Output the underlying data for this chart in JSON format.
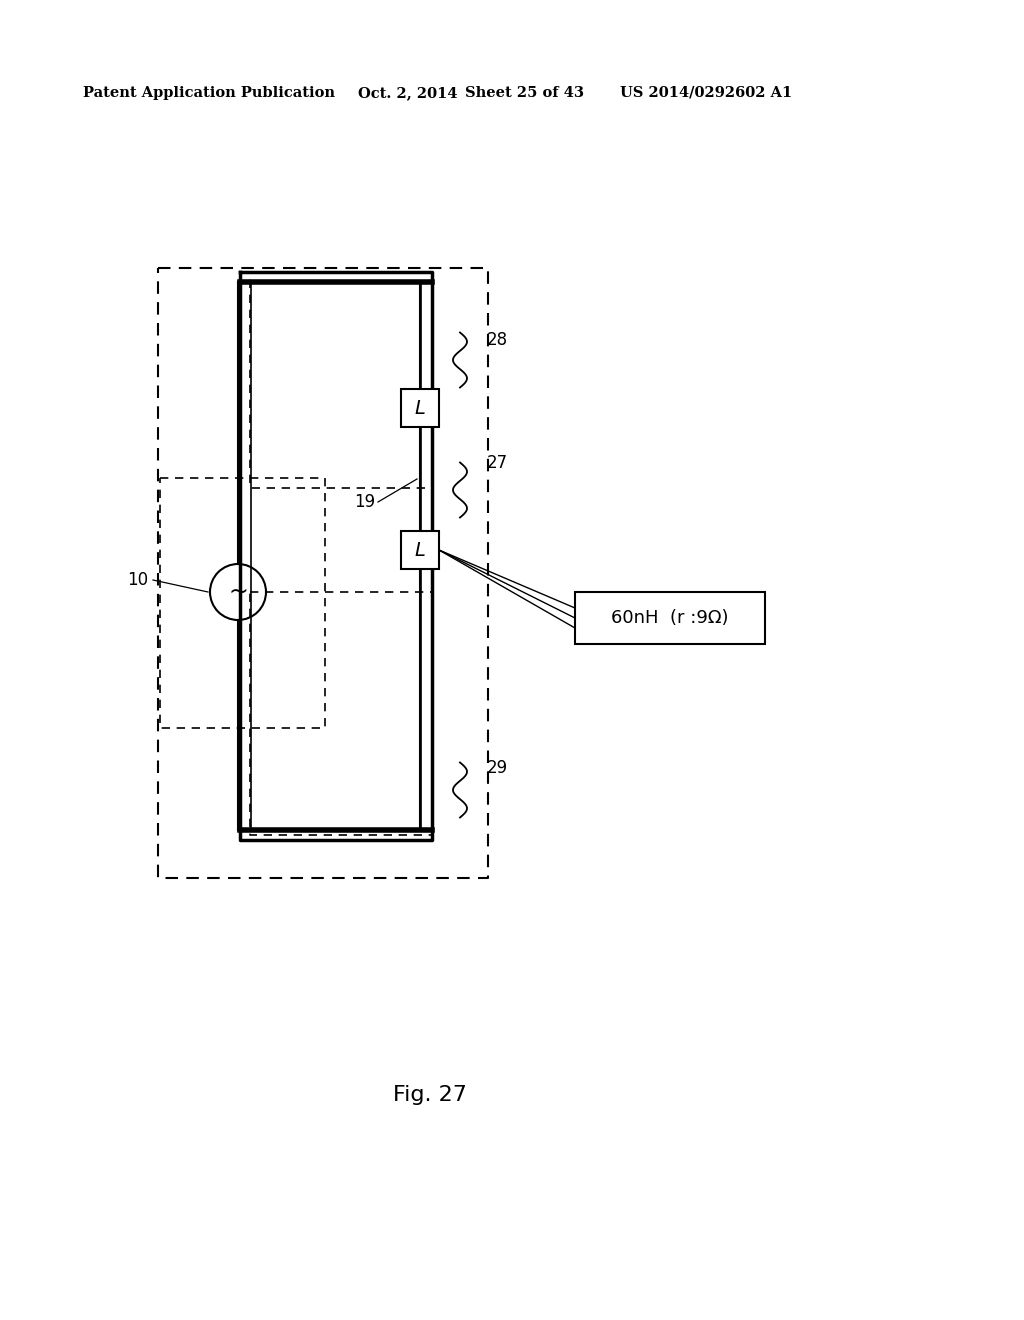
{
  "bg_color": "#ffffff",
  "text_color": "#000000",
  "header_text": "Patent Application Publication",
  "header_date": "Oct. 2, 2014",
  "header_sheet": "Sheet 25 of 43",
  "header_patent": "US 2014/0292602 A1",
  "figure_label": "Fig. 27",
  "label_10": "10",
  "label_19": "19",
  "label_27": "27",
  "label_28": "28",
  "label_29": "29",
  "box_label": "60nH  (r :9Ω)"
}
